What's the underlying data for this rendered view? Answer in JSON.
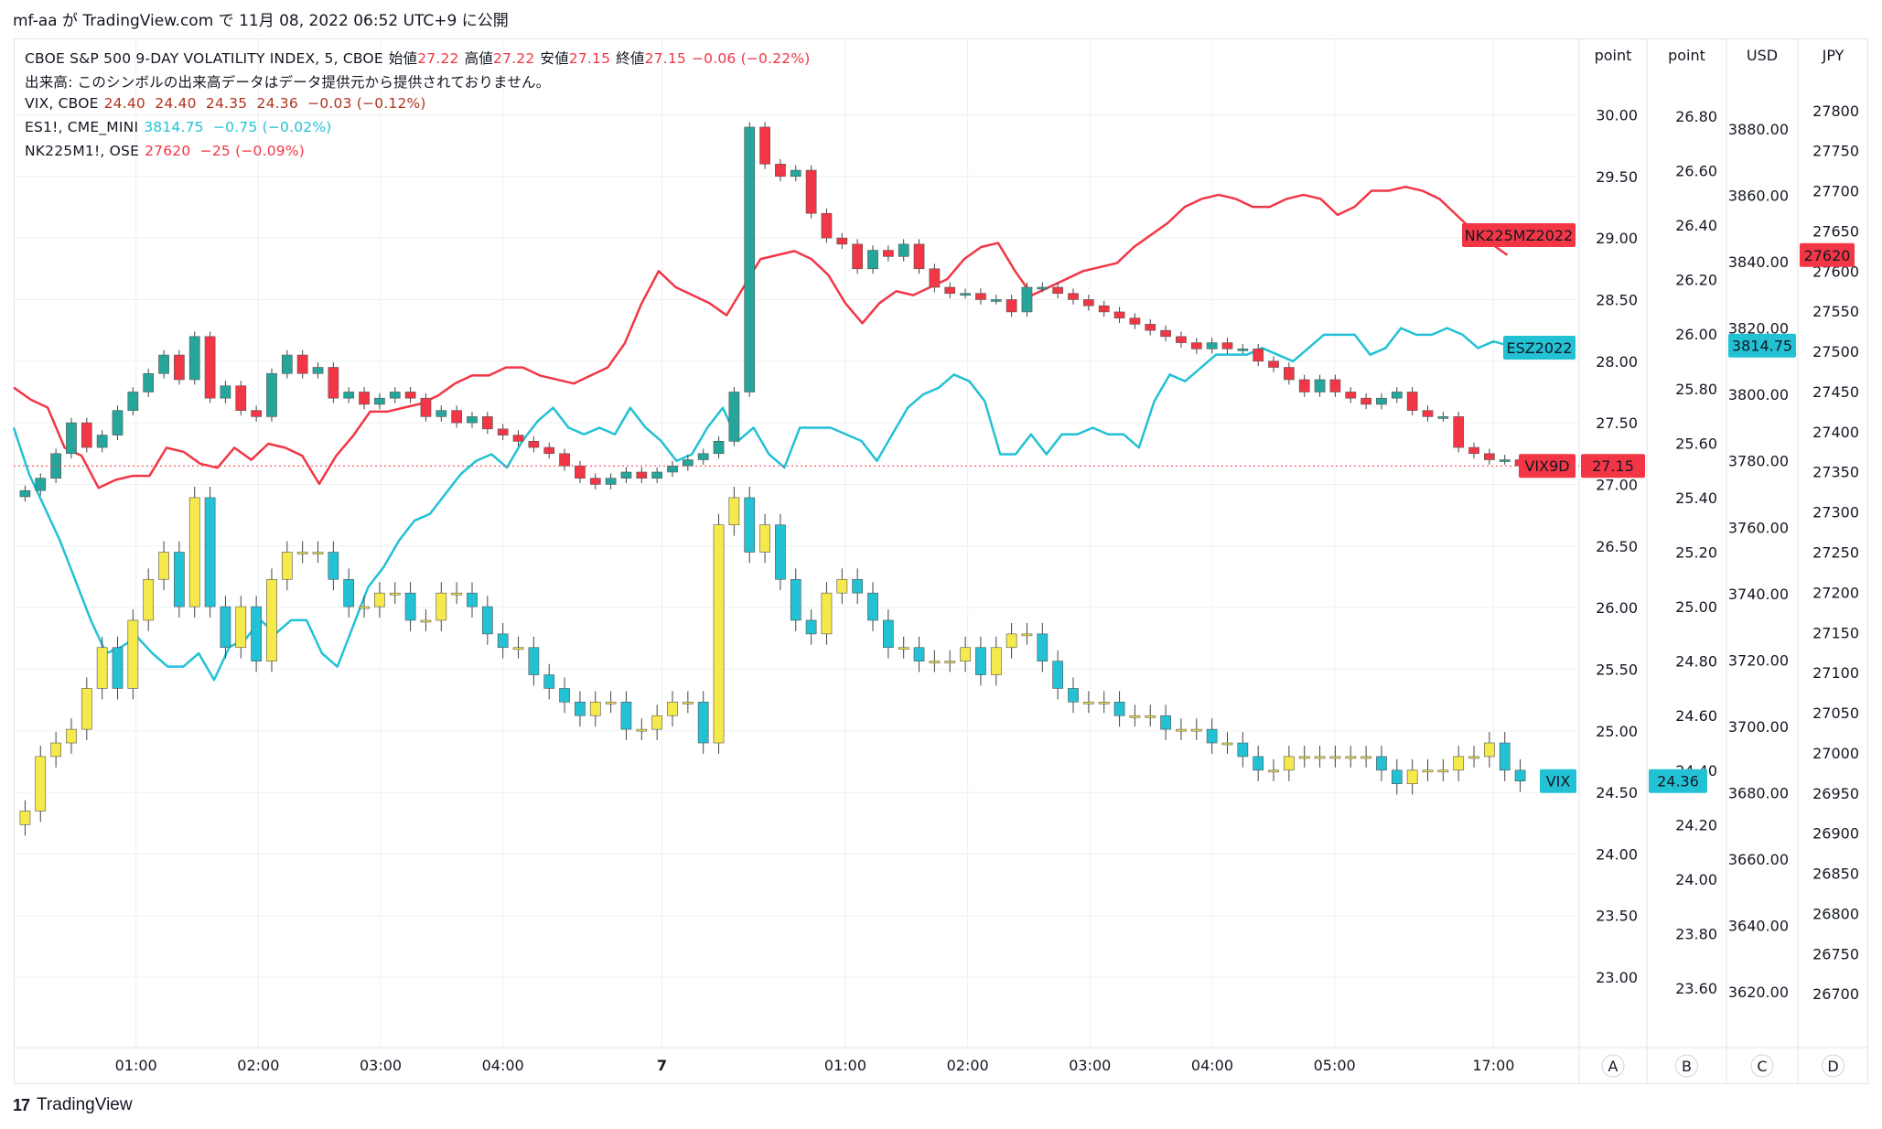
{
  "header": {
    "text": "mf-aa が TradingView.com で 11月 08, 2022 06:52 UTC+9 に公開"
  },
  "legend": {
    "main": {
      "name": "CBOE S&P 500 9-DAY VOLATILITY INDEX, 5, CBOE",
      "open_label": "始値",
      "open": "27.22",
      "high_label": "高値",
      "high": "27.22",
      "low_label": "安値",
      "low": "27.15",
      "close_label": "終値",
      "close": "27.15",
      "change": "−0.06 (−0.22%)"
    },
    "volume_note": "出来高: このシンボルの出来高データはデータ提供元から提供されておりません。",
    "vix": {
      "name": "VIX, CBOE",
      "values": "24.40  24.40  24.35  24.36  −0.03 (−0.12%)"
    },
    "es": {
      "name": "ES1!, CME_MINI",
      "values": "3814.75  −0.75 (−0.02%)"
    },
    "nk": {
      "name": "NK225M1!, OSE",
      "values": "27620  −25 (−0.09%)"
    }
  },
  "footer": {
    "logo": "17",
    "brand": "TradingView"
  },
  "colors": {
    "red": "#f23645",
    "teal": "#22c1d4",
    "yellow": "#f5e94b",
    "up_teal": "#26a69a",
    "grid": "#eef0f3"
  },
  "chart_data": {
    "type": "candlestick+line",
    "x_ticks": [
      "01:00",
      "02:00",
      "03:00",
      "04:00",
      "7",
      "01:00",
      "02:00",
      "03:00",
      "04:00",
      "05:00",
      "17:00"
    ],
    "x_tick_pos": [
      1,
      2,
      3,
      4,
      5.3,
      6.8,
      7.8,
      8.8,
      9.8,
      10.8,
      12.1
    ],
    "axes": [
      {
        "id": "A",
        "unit": "point",
        "ticks": [
          "30.00",
          "29.50",
          "29.00",
          "28.50",
          "28.00",
          "27.50",
          "27.00",
          "26.50",
          "26.00",
          "25.50",
          "25.00",
          "24.50",
          "24.00",
          "23.50",
          "23.00"
        ],
        "ylim": [
          22.8,
          30.1
        ]
      },
      {
        "id": "B",
        "unit": "point",
        "ticks": [
          "26.80",
          "26.60",
          "26.40",
          "26.20",
          "26.00",
          "25.80",
          "25.60",
          "25.40",
          "25.20",
          "25.00",
          "24.80",
          "24.60",
          "24.40",
          "24.20",
          "24.00",
          "23.80",
          "23.60"
        ],
        "ylim": [
          23.55,
          26.85
        ]
      },
      {
        "id": "C",
        "unit": "USD",
        "ticks": [
          "3880.00",
          "3860.00",
          "3840.00",
          "3820.00",
          "3800.00",
          "3780.00",
          "3760.00",
          "3740.00",
          "3720.00",
          "3700.00",
          "3680.00",
          "3660.00",
          "3640.00",
          "3620.00"
        ],
        "ylim": [
          3617,
          3888
        ]
      },
      {
        "id": "D",
        "unit": "JPY",
        "ticks": [
          "27800",
          "27750",
          "27700",
          "27650",
          "27600",
          "27550",
          "27500",
          "27450",
          "27400",
          "27350",
          "27300",
          "27250",
          "27200",
          "27150",
          "27100",
          "27050",
          "27000",
          "26950",
          "26900",
          "26850",
          "26800",
          "26750",
          "26700"
        ],
        "ylim": [
          26690,
          27810
        ]
      }
    ],
    "series": [
      {
        "name": "VIX9D",
        "type": "candles",
        "axis": "A",
        "last": "27.15",
        "closes": [
          26.95,
          27.05,
          27.25,
          27.5,
          27.3,
          27.4,
          27.6,
          27.75,
          27.9,
          28.05,
          27.85,
          28.2,
          27.7,
          27.8,
          27.6,
          27.55,
          27.9,
          28.05,
          27.9,
          27.95,
          27.7,
          27.75,
          27.65,
          27.7,
          27.75,
          27.7,
          27.55,
          27.6,
          27.5,
          27.55,
          27.45,
          27.4,
          27.35,
          27.3,
          27.25,
          27.15,
          27.05,
          27.0,
          27.05,
          27.1,
          27.05,
          27.1,
          27.15,
          27.2,
          27.25,
          27.35,
          27.75,
          29.9,
          29.6,
          29.5,
          29.55,
          29.2,
          29.0,
          28.95,
          28.75,
          28.9,
          28.85,
          28.95,
          28.75,
          28.6,
          28.55,
          28.55,
          28.5,
          28.5,
          28.4,
          28.6,
          28.6,
          28.55,
          28.5,
          28.45,
          28.4,
          28.35,
          28.3,
          28.25,
          28.2,
          28.15,
          28.1,
          28.15,
          28.1,
          28.1,
          28.0,
          27.95,
          27.85,
          27.75,
          27.85,
          27.75,
          27.7,
          27.65,
          27.7,
          27.75,
          27.6,
          27.55,
          27.55,
          27.3,
          27.25,
          27.2,
          27.2,
          27.15
        ]
      },
      {
        "name": "VIX",
        "type": "candles",
        "axis": "B",
        "last": "24.36",
        "closes": [
          24.25,
          24.45,
          24.5,
          24.55,
          24.7,
          24.85,
          24.7,
          24.95,
          25.1,
          25.2,
          25.0,
          25.4,
          25.0,
          24.85,
          25.0,
          24.8,
          25.1,
          25.2,
          25.2,
          25.2,
          25.1,
          25.0,
          25.0,
          25.05,
          25.05,
          24.95,
          24.95,
          25.05,
          25.05,
          25.0,
          24.9,
          24.85,
          24.85,
          24.75,
          24.7,
          24.65,
          24.6,
          24.65,
          24.65,
          24.55,
          24.55,
          24.6,
          24.65,
          24.65,
          24.5,
          25.3,
          25.4,
          25.2,
          25.3,
          25.1,
          24.95,
          24.9,
          25.05,
          25.1,
          25.05,
          24.95,
          24.85,
          24.85,
          24.8,
          24.8,
          24.8,
          24.85,
          24.75,
          24.85,
          24.9,
          24.9,
          24.8,
          24.7,
          24.65,
          24.65,
          24.65,
          24.6,
          24.6,
          24.6,
          24.55,
          24.55,
          24.55,
          24.5,
          24.5,
          24.45,
          24.4,
          24.4,
          24.45,
          24.45,
          24.45,
          24.45,
          24.45,
          24.45,
          24.4,
          24.35,
          24.4,
          24.4,
          24.4,
          24.45,
          24.45,
          24.5,
          24.4,
          24.36
        ]
      },
      {
        "name": "ESZ2022",
        "type": "line",
        "axis": "C",
        "last": "3814.75",
        "values": [
          3790,
          3776,
          3766,
          3756,
          3744,
          3732,
          3722,
          3724,
          3727,
          3722,
          3718,
          3718,
          3722,
          3714,
          3724,
          3726,
          3732,
          3728,
          3732,
          3732,
          3722,
          3718,
          3730,
          3742,
          3748,
          3756,
          3762,
          3764,
          3770,
          3776,
          3780,
          3782,
          3778,
          3786,
          3792,
          3796,
          3790,
          3788,
          3790,
          3788,
          3796,
          3790,
          3786,
          3780,
          3782,
          3790,
          3796,
          3786,
          3790,
          3782,
          3778,
          3790,
          3790,
          3790,
          3788,
          3786,
          3780,
          3788,
          3796,
          3800,
          3802,
          3806,
          3804,
          3798,
          3782,
          3782,
          3788,
          3782,
          3788,
          3788,
          3790,
          3788,
          3788,
          3784,
          3798,
          3806,
          3804,
          3808,
          3812,
          3812,
          3812,
          3814,
          3812,
          3810,
          3814,
          3818,
          3818,
          3818,
          3812,
          3814,
          3820,
          3818,
          3818,
          3820,
          3818,
          3814,
          3816,
          3814.75
        ]
      },
      {
        "name": "NK225MZ2022",
        "type": "line",
        "axis": "D",
        "last": "27620",
        "values": [
          27455,
          27440,
          27430,
          27380,
          27370,
          27330,
          27340,
          27345,
          27345,
          27380,
          27375,
          27360,
          27355,
          27380,
          27365,
          27385,
          27380,
          27370,
          27335,
          27370,
          27395,
          27425,
          27425,
          27430,
          27435,
          27445,
          27460,
          27470,
          27470,
          27480,
          27480,
          27470,
          27465,
          27460,
          27470,
          27480,
          27510,
          27560,
          27600,
          27580,
          27570,
          27560,
          27545,
          27580,
          27615,
          27620,
          27625,
          27615,
          27595,
          27560,
          27535,
          27560,
          27575,
          27570,
          27580,
          27590,
          27615,
          27630,
          27635,
          27600,
          27570,
          27580,
          27590,
          27600,
          27605,
          27610,
          27630,
          27645,
          27660,
          27680,
          27690,
          27695,
          27690,
          27680,
          27680,
          27690,
          27695,
          27690,
          27670,
          27680,
          27700,
          27700,
          27705,
          27700,
          27690,
          27670,
          27650,
          27635,
          27620
        ]
      }
    ],
    "price_lines": [
      {
        "axis": "A",
        "value": 27.15
      }
    ]
  }
}
